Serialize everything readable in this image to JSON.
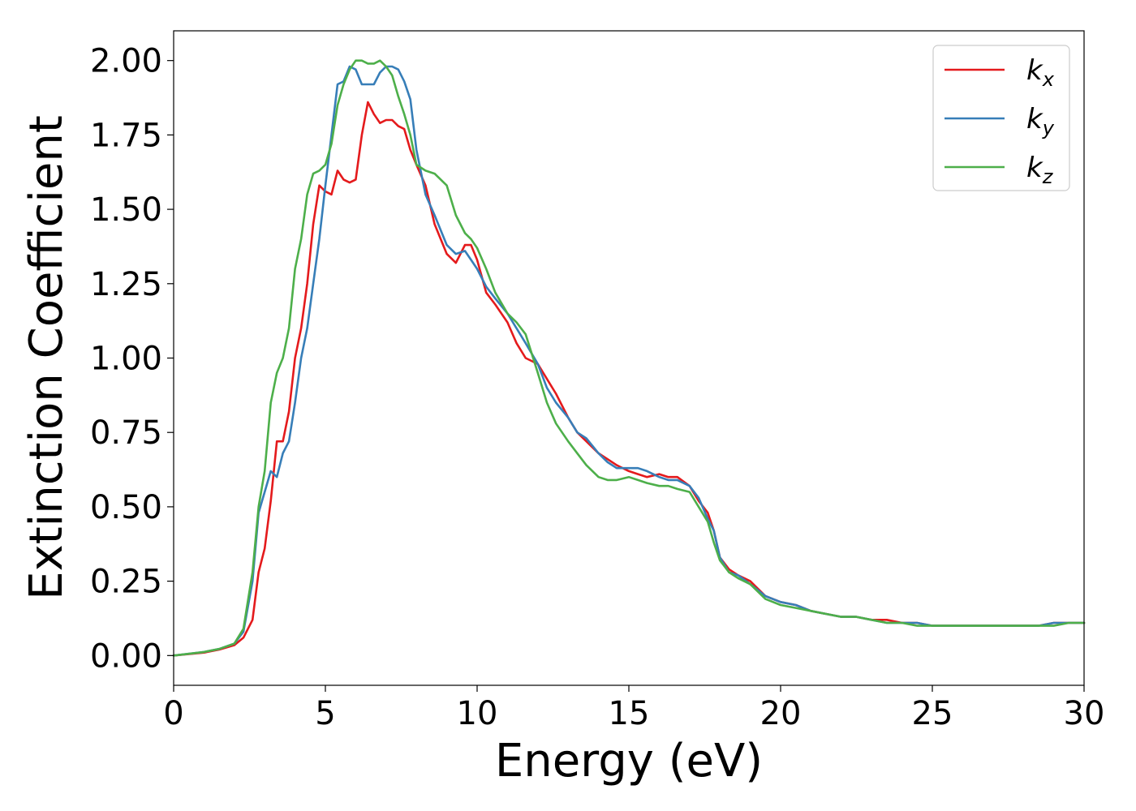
{
  "chart_data": {
    "type": "line",
    "xlabel": "Energy (eV)",
    "ylabel": "Extinction Coefficient",
    "xlim": [
      0,
      30
    ],
    "ylim": [
      -0.1,
      2.1
    ],
    "xticks": [
      0,
      5,
      10,
      15,
      20,
      25,
      30
    ],
    "xtick_labels": [
      "0",
      "5",
      "10",
      "15",
      "20",
      "25",
      "30"
    ],
    "yticks": [
      0,
      0.25,
      0.5,
      0.75,
      1.0,
      1.25,
      1.5,
      1.75,
      2.0
    ],
    "ytick_labels": [
      "0.00",
      "0.25",
      "0.50",
      "0.75",
      "1.00",
      "1.25",
      "1.50",
      "1.75",
      "2.00"
    ],
    "grid": false,
    "legend_position": "top-right",
    "series": [
      {
        "name": "k",
        "subscript": "x",
        "color": "#e41a1c",
        "x": [
          0,
          1,
          1.5,
          2,
          2.3,
          2.6,
          2.8,
          3.0,
          3.2,
          3.4,
          3.6,
          3.8,
          4.0,
          4.2,
          4.4,
          4.6,
          4.8,
          5.0,
          5.2,
          5.4,
          5.6,
          5.8,
          6.0,
          6.2,
          6.4,
          6.6,
          6.8,
          7.0,
          7.2,
          7.4,
          7.6,
          7.8,
          8.0,
          8.3,
          8.6,
          9.0,
          9.3,
          9.6,
          9.8,
          10.0,
          10.3,
          10.6,
          11.0,
          11.3,
          11.6,
          12.0,
          12.3,
          12.6,
          13.0,
          13.3,
          13.6,
          14.0,
          14.3,
          14.6,
          15.0,
          15.3,
          15.6,
          16.0,
          16.3,
          16.6,
          17.0,
          17.3,
          17.6,
          17.8,
          18.0,
          18.3,
          18.6,
          19.0,
          19.5,
          20,
          20.5,
          21,
          21.5,
          22,
          22.5,
          23,
          23.5,
          24,
          24.5,
          25,
          25.5,
          26,
          26.5,
          27,
          27.5,
          28,
          28.5,
          29,
          29.5,
          30
        ],
        "y": [
          0,
          0.01,
          0.02,
          0.035,
          0.06,
          0.12,
          0.28,
          0.36,
          0.52,
          0.72,
          0.72,
          0.82,
          1.0,
          1.1,
          1.25,
          1.45,
          1.58,
          1.56,
          1.55,
          1.63,
          1.6,
          1.59,
          1.6,
          1.75,
          1.86,
          1.82,
          1.79,
          1.8,
          1.8,
          1.78,
          1.77,
          1.7,
          1.65,
          1.58,
          1.45,
          1.35,
          1.32,
          1.38,
          1.38,
          1.33,
          1.22,
          1.18,
          1.12,
          1.05,
          1.0,
          0.98,
          0.93,
          0.88,
          0.8,
          0.75,
          0.72,
          0.68,
          0.66,
          0.64,
          0.62,
          0.61,
          0.6,
          0.61,
          0.6,
          0.6,
          0.57,
          0.52,
          0.48,
          0.42,
          0.33,
          0.29,
          0.27,
          0.25,
          0.2,
          0.18,
          0.17,
          0.15,
          0.14,
          0.13,
          0.13,
          0.12,
          0.12,
          0.11,
          0.11,
          0.1,
          0.1,
          0.1,
          0.1,
          0.1,
          0.1,
          0.1,
          0.1,
          0.11,
          0.11,
          0.11
        ]
      },
      {
        "name": "k",
        "subscript": "y",
        "color": "#377eb8",
        "x": [
          0,
          1,
          1.5,
          2,
          2.3,
          2.6,
          2.8,
          3.0,
          3.2,
          3.4,
          3.6,
          3.8,
          4.0,
          4.2,
          4.4,
          4.6,
          4.8,
          5.0,
          5.2,
          5.4,
          5.6,
          5.8,
          6.0,
          6.2,
          6.4,
          6.6,
          6.8,
          7.0,
          7.2,
          7.4,
          7.6,
          7.8,
          8.0,
          8.3,
          8.6,
          9.0,
          9.3,
          9.6,
          9.8,
          10.0,
          10.3,
          10.6,
          11.0,
          11.3,
          11.6,
          12.0,
          12.3,
          12.6,
          13.0,
          13.3,
          13.6,
          14.0,
          14.3,
          14.6,
          15.0,
          15.3,
          15.6,
          16.0,
          16.3,
          16.6,
          17.0,
          17.3,
          17.6,
          17.8,
          18.0,
          18.3,
          18.6,
          19.0,
          19.5,
          20,
          20.5,
          21,
          21.5,
          22,
          22.5,
          23,
          23.5,
          24,
          24.5,
          25,
          25.5,
          26,
          26.5,
          27,
          27.5,
          28,
          28.5,
          29,
          29.5,
          30
        ],
        "y": [
          0,
          0.012,
          0.022,
          0.04,
          0.08,
          0.25,
          0.48,
          0.55,
          0.62,
          0.6,
          0.68,
          0.72,
          0.85,
          1.0,
          1.1,
          1.25,
          1.4,
          1.58,
          1.75,
          1.92,
          1.93,
          1.98,
          1.97,
          1.92,
          1.92,
          1.92,
          1.96,
          1.98,
          1.98,
          1.97,
          1.93,
          1.87,
          1.7,
          1.55,
          1.48,
          1.38,
          1.35,
          1.36,
          1.33,
          1.3,
          1.24,
          1.2,
          1.15,
          1.1,
          1.05,
          0.98,
          0.9,
          0.85,
          0.8,
          0.75,
          0.73,
          0.68,
          0.65,
          0.63,
          0.63,
          0.63,
          0.62,
          0.6,
          0.59,
          0.59,
          0.57,
          0.53,
          0.46,
          0.42,
          0.33,
          0.28,
          0.27,
          0.24,
          0.2,
          0.18,
          0.17,
          0.15,
          0.14,
          0.13,
          0.13,
          0.12,
          0.11,
          0.11,
          0.11,
          0.1,
          0.1,
          0.1,
          0.1,
          0.1,
          0.1,
          0.1,
          0.1,
          0.11,
          0.11,
          0.11
        ]
      },
      {
        "name": "k",
        "subscript": "z",
        "color": "#4daf4a",
        "x": [
          0,
          1,
          1.5,
          2,
          2.3,
          2.6,
          2.8,
          3.0,
          3.2,
          3.4,
          3.6,
          3.8,
          4.0,
          4.2,
          4.4,
          4.6,
          4.8,
          5.0,
          5.2,
          5.4,
          5.6,
          5.8,
          6.0,
          6.2,
          6.4,
          6.6,
          6.8,
          7.0,
          7.2,
          7.4,
          7.6,
          7.8,
          8.0,
          8.3,
          8.6,
          9.0,
          9.3,
          9.6,
          9.8,
          10.0,
          10.3,
          10.6,
          11.0,
          11.3,
          11.6,
          12.0,
          12.3,
          12.6,
          13.0,
          13.3,
          13.6,
          14.0,
          14.3,
          14.6,
          15.0,
          15.3,
          15.6,
          16.0,
          16.3,
          16.6,
          17.0,
          17.3,
          17.6,
          17.8,
          18.0,
          18.3,
          18.6,
          19.0,
          19.5,
          20,
          20.5,
          21,
          21.5,
          22,
          22.5,
          23,
          23.5,
          24,
          24.5,
          25,
          25.5,
          26,
          26.5,
          27,
          27.5,
          28,
          28.5,
          29,
          29.5,
          30
        ],
        "y": [
          0,
          0.012,
          0.022,
          0.04,
          0.09,
          0.28,
          0.5,
          0.62,
          0.85,
          0.95,
          1.0,
          1.1,
          1.3,
          1.4,
          1.55,
          1.62,
          1.63,
          1.65,
          1.72,
          1.85,
          1.92,
          1.97,
          2.0,
          2.0,
          1.99,
          1.99,
          2.0,
          1.98,
          1.95,
          1.88,
          1.82,
          1.75,
          1.65,
          1.63,
          1.62,
          1.58,
          1.48,
          1.42,
          1.4,
          1.37,
          1.3,
          1.22,
          1.15,
          1.12,
          1.08,
          0.95,
          0.85,
          0.78,
          0.72,
          0.68,
          0.64,
          0.6,
          0.59,
          0.59,
          0.6,
          0.59,
          0.58,
          0.57,
          0.57,
          0.56,
          0.55,
          0.5,
          0.45,
          0.38,
          0.32,
          0.28,
          0.26,
          0.24,
          0.19,
          0.17,
          0.16,
          0.15,
          0.14,
          0.13,
          0.13,
          0.12,
          0.11,
          0.11,
          0.1,
          0.1,
          0.1,
          0.1,
          0.1,
          0.1,
          0.1,
          0.1,
          0.1,
          0.1,
          0.11,
          0.11
        ]
      }
    ]
  }
}
